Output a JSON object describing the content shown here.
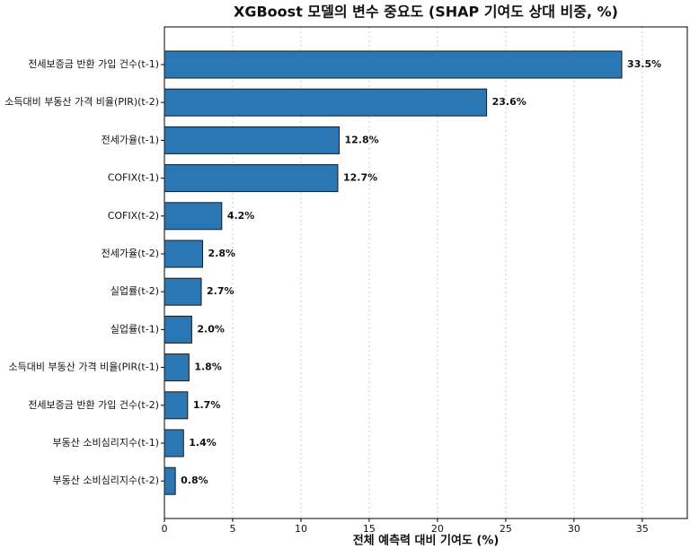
{
  "chart_data": {
    "type": "bar",
    "orientation": "horizontal",
    "title": "XGBoost 모델의 변수 중요도 (SHAP 기여도 상대 비중, %)",
    "x_label": "전체 예측력 대비 기여도 (%)",
    "categories": [
      "전세보증금 반환 가입 건수(t-1)",
      "소득대비 부동산 가격 비율(PIR)(t-2)",
      "전세가율(t-1)",
      "COFIX(t-1)",
      "COFIX(t-2)",
      "전세가율(t-2)",
      "실업률(t-2)",
      "실업률(t-1)",
      "소득대비 부동산 가격 비율(PIR(t-1)",
      "전세보증금 반환 가입 건수(t-2)",
      "부동산 소비심리지수(t-1)",
      "부동산 소비심리지수(t-2)"
    ],
    "values": [
      33.5,
      23.6,
      12.8,
      12.7,
      4.2,
      2.8,
      2.7,
      2.0,
      1.8,
      1.7,
      1.4,
      0.8
    ],
    "value_labels": [
      "33.5%",
      "23.6%",
      "12.8%",
      "12.7%",
      "4.2%",
      "2.8%",
      "2.7%",
      "2.0%",
      "1.8%",
      "1.7%",
      "1.4%",
      "0.8%"
    ],
    "color": "#2a77b4",
    "xlim": [
      0,
      38.3
    ],
    "xticks": [
      0,
      5,
      10,
      15,
      20,
      25,
      30,
      35
    ],
    "grid": true
  }
}
